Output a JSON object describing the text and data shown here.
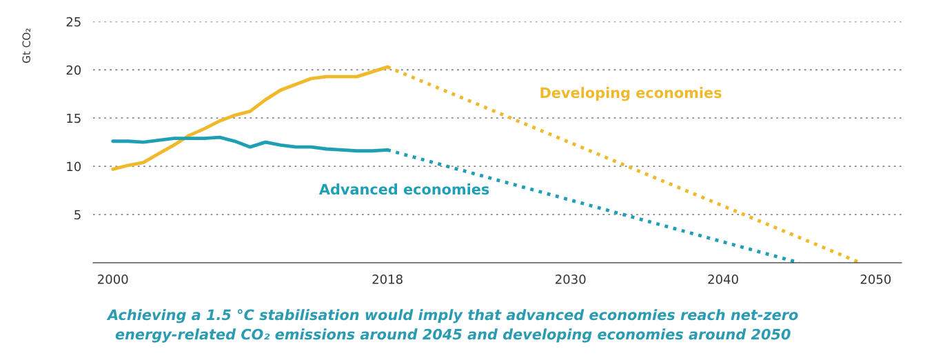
{
  "chart_data": {
    "type": "line",
    "x": [
      2000,
      2001,
      2002,
      2003,
      2004,
      2005,
      2006,
      2007,
      2008,
      2009,
      2010,
      2011,
      2012,
      2013,
      2014,
      2015,
      2016,
      2017,
      2018
    ],
    "series": [
      {
        "name": "Developing economies",
        "color": "#f0b92c",
        "line_style": "solid",
        "values": [
          9.7,
          10.1,
          10.4,
          11.3,
          12.2,
          13.2,
          13.9,
          14.7,
          15.3,
          15.7,
          16.9,
          17.9,
          18.5,
          19.1,
          19.3,
          19.3,
          19.3,
          19.8,
          20.3
        ]
      },
      {
        "name": "Advanced economies",
        "color": "#1e9fb4",
        "line_style": "solid",
        "values": [
          12.6,
          12.6,
          12.5,
          12.7,
          12.9,
          12.9,
          12.9,
          13.0,
          12.6,
          12.0,
          12.5,
          12.2,
          12.0,
          12.0,
          11.8,
          11.7,
          11.6,
          11.6,
          11.7
        ]
      },
      {
        "color": "#f0b92c",
        "line_style": "dotted",
        "x": [
          2018,
          2049
        ],
        "values": [
          20.3,
          0
        ]
      },
      {
        "color": "#1e9fb4",
        "line_style": "dotted",
        "x": [
          2018,
          2045
        ],
        "values": [
          11.7,
          0
        ]
      }
    ],
    "ylabel": "Gt CO₂",
    "xlim": [
      1998.7,
      2051.7
    ],
    "xticks": [
      2000,
      2018,
      2030,
      2040,
      2050
    ],
    "ylim": [
      0,
      25
    ],
    "yticks": [
      5,
      10,
      15,
      20,
      25
    ],
    "grid": "y",
    "annotations": [
      "Achieving a 1.5 °C stabilisation would imply that advanced economies reach net-zero\nenergy-related CO₂ emissions around 2045 and developing economies around 2050"
    ]
  }
}
